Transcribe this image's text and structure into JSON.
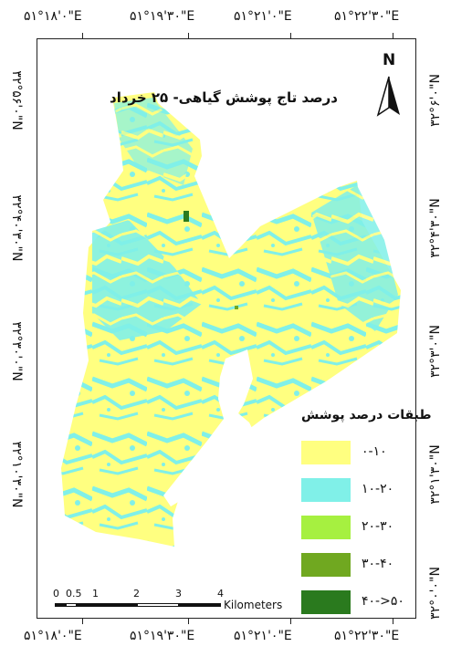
{
  "title": "درصد تاج پوشش گیاهی- ۲۵ خرداد",
  "north_label": "N",
  "top_coords": [
    "۵۱°۱۸'۰\"E",
    "۵۱°۱۹'۳۰\"E",
    "۵۱°۲۱'۰\"E",
    "۵۱°۲۲'۳۰\"E"
  ],
  "bottom_coords": [
    "۵۱°۱۸'۰\"E",
    "۵۱°۱۹'۳۰\"E",
    "۵۱°۲۱'۰\"E",
    "۵۱°۲۲'۳۰\"E"
  ],
  "left_coords": [
    "۳۲°۵۶'۰\"N",
    "۳۲°۴۰'۳۰\"N",
    "۳۲°۳۰'۰\"N",
    "۳۲°۱۰'۳۰\"N"
  ],
  "right_coords": [
    "۳۲°۶'۰\"N",
    "۳۲°۴'۳۰\"N",
    "۳۲°۳'۰\"N",
    "۳۲°۱'۳۰\"N",
    "۳۲°۰'۰\"N"
  ],
  "legend": {
    "title": "طبقات درصد پوشش",
    "items": [
      {
        "label": "۰-۱۰",
        "color": "#ffff80"
      },
      {
        "label": "۱۰-۲۰",
        "color": "#80f0e8"
      },
      {
        "label": "۲۰-۳۰",
        "color": "#a6f040"
      },
      {
        "label": "۳۰-۴۰",
        "color": "#70a820"
      },
      {
        "label": "۴۰->۵۰",
        "color": "#2a7a1e"
      }
    ]
  },
  "scale_bar": {
    "ticks": [
      "0",
      "0.5",
      "1",
      "2",
      "3",
      "4"
    ],
    "unit": "Kilometers"
  }
}
